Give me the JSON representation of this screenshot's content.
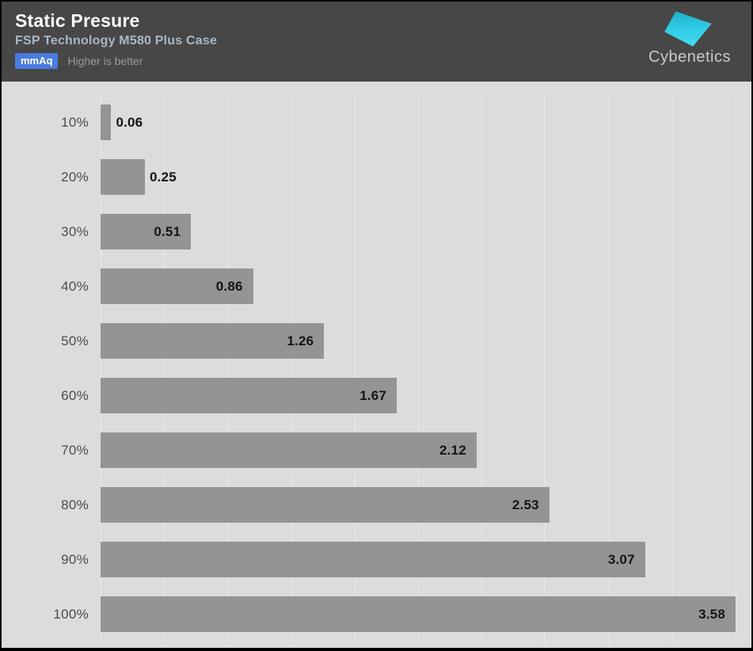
{
  "header": {
    "title": "Static Presure",
    "subtitle": "FSP Technology M580 Plus Case",
    "unit_badge": "mmAq",
    "note": "Higher is better",
    "logo_text": "Cybenetics"
  },
  "colors": {
    "header_bg": "#474747",
    "plot_bg": "#dcdcdc",
    "gridline": "#e9e9e9",
    "bar": "#949494",
    "badge_bg": "#4a7ce0",
    "subtitle": "#a9b7c4",
    "logo_cyan_dark": "#1fb0c9",
    "logo_cyan_light": "#45ddf5"
  },
  "chart_data": {
    "type": "bar",
    "orientation": "horizontal",
    "title": "Static Presure",
    "subtitle": "FSP Technology M580 Plus Case",
    "unit": "mmAq",
    "note": "Higher is better",
    "categories": [
      "10%",
      "20%",
      "30%",
      "40%",
      "50%",
      "60%",
      "70%",
      "80%",
      "90%",
      "100%"
    ],
    "values": [
      0.06,
      0.25,
      0.51,
      0.86,
      1.26,
      1.67,
      2.12,
      2.53,
      3.07,
      3.58
    ],
    "value_labels": [
      "0.06",
      "0.25",
      "0.51",
      "0.86",
      "1.26",
      "1.67",
      "2.12",
      "2.53",
      "3.07",
      "3.58"
    ],
    "xlabel": "",
    "ylabel": "",
    "xlim": [
      0,
      3.58
    ],
    "grid_divisions": 10,
    "grid": true,
    "legend_position": "none",
    "bar_labels_position": "inside-end (outside-end when bar too short)"
  }
}
